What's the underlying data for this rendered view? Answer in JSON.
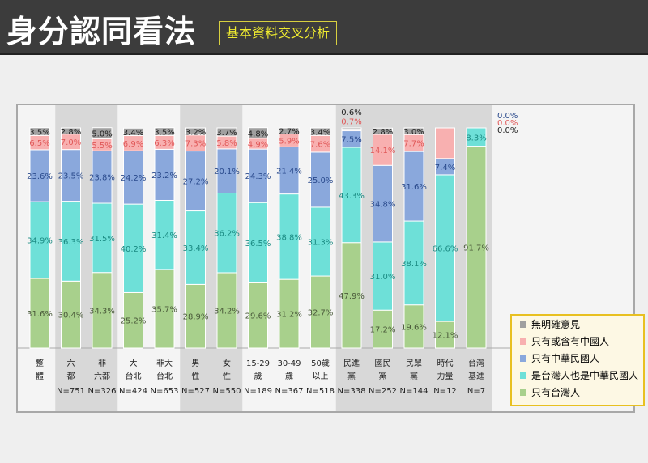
{
  "header": {
    "title": "身分認同看法",
    "subtitle": "基本資料交叉分析"
  },
  "colors": {
    "none": "#a0a0a0",
    "chinese": "#f8b0b0",
    "roc": "#8aa8dc",
    "both": "#6ee0d8",
    "taiwanese": "#a8d08c",
    "legend_border": "#e8c020"
  },
  "chart_data": {
    "type": "bar",
    "stacked": true,
    "ylim": [
      0,
      100
    ],
    "legend_position": "right",
    "series": [
      {
        "key": "taiwanese",
        "name": "只有台灣人",
        "values": [
          31.6,
          30.4,
          34.3,
          25.2,
          35.7,
          28.9,
          34.2,
          29.6,
          31.2,
          32.7,
          47.9,
          17.2,
          19.6,
          12.1,
          91.7
        ]
      },
      {
        "key": "both",
        "name": "是台灣人也是中華民國人",
        "values": [
          34.9,
          36.3,
          31.5,
          40.2,
          31.4,
          33.4,
          36.2,
          36.5,
          38.8,
          31.3,
          43.3,
          31.0,
          38.1,
          66.6,
          8.3
        ]
      },
      {
        "key": "roc",
        "name": "只有中華民國人",
        "values": [
          23.6,
          23.5,
          23.8,
          24.2,
          23.2,
          27.2,
          20.1,
          24.3,
          21.4,
          25.0,
          7.5,
          34.8,
          31.6,
          7.4,
          0.0
        ]
      },
      {
        "key": "chinese",
        "name": "只有或含有中國人",
        "values": [
          6.5,
          7.0,
          5.5,
          6.9,
          6.3,
          7.3,
          5.8,
          4.9,
          5.9,
          7.6,
          0.7,
          14.1,
          7.7,
          null,
          0.0
        ]
      },
      {
        "key": "none",
        "name": "無明確意見",
        "values": [
          3.5,
          2.8,
          5.0,
          3.4,
          3.5,
          3.2,
          3.7,
          4.8,
          2.7,
          3.4,
          0.6,
          2.8,
          3.0,
          null,
          0.0
        ]
      }
    ],
    "categories": [
      {
        "l1": "整",
        "l2": "體",
        "n": ""
      },
      {
        "l1": "六",
        "l2": "都",
        "n": "N=751"
      },
      {
        "l1": "非",
        "l2": "六都",
        "n": "N=326"
      },
      {
        "l1": "大",
        "l2": "台北",
        "n": "N=424"
      },
      {
        "l1": "非大",
        "l2": "台北",
        "n": "N=653"
      },
      {
        "l1": "男",
        "l2": "性",
        "n": "N=527"
      },
      {
        "l1": "女",
        "l2": "性",
        "n": "N=550"
      },
      {
        "l1": "15-29",
        "l2": "歲",
        "n": "N=189"
      },
      {
        "l1": "30-49",
        "l2": "歲",
        "n": "N=367"
      },
      {
        "l1": "50歲",
        "l2": "以上",
        "n": "N=518"
      },
      {
        "l1": "民進",
        "l2": "黨",
        "n": "N=338"
      },
      {
        "l1": "國民",
        "l2": "黨",
        "n": "N=252"
      },
      {
        "l1": "民眾",
        "l2": "黨",
        "n": "N=144"
      },
      {
        "l1": "時代",
        "l2": "力量",
        "n": "N=12"
      },
      {
        "l1": "台灣",
        "l2": "基進",
        "n": "N=7"
      }
    ],
    "shaded_groups": [
      [
        1,
        2
      ],
      [
        5,
        6
      ],
      [
        10,
        14
      ]
    ]
  },
  "legend": {
    "items": [
      "無明確意見",
      "只有或含有中國人",
      "只有中華民國人",
      "是台灣人也是中華民國人",
      "只有台灣人"
    ]
  }
}
